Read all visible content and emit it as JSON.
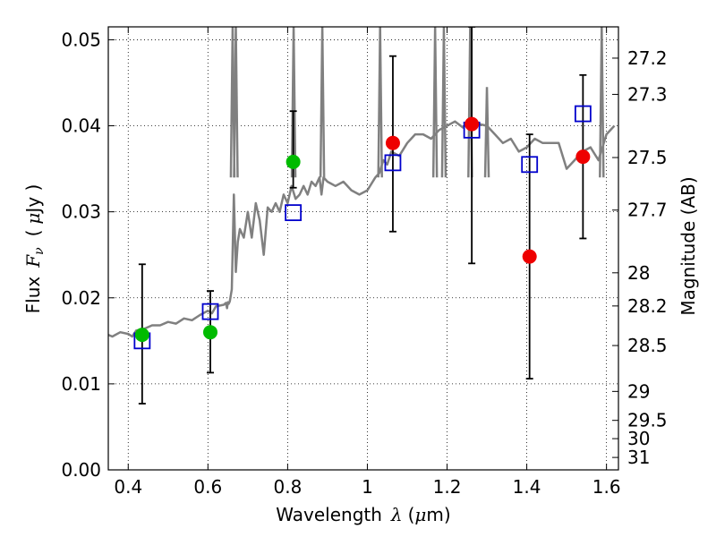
{
  "chart_data": {
    "type": "scatter",
    "xlabel_prefix": "Wavelength",
    "xlabel_symbol": "λ",
    "xlabel_unit_open": "(",
    "xlabel_unit_mu": "μ",
    "xlabel_unit_rest": "m)",
    "ylabel_prefix": "Flux",
    "ylabel_symbol": "F",
    "ylabel_subscript": "ν",
    "ylabel_unit_open": "(",
    "ylabel_unit_mu": "μ",
    "ylabel_unit_rest": "Jy )",
    "y2label": "Magnitude (AB)",
    "xlim": [
      0.35,
      1.63
    ],
    "ylim": [
      0.0,
      0.0515
    ],
    "grid": true,
    "x_ticks": [
      {
        "v": 0.4,
        "t": "0.4"
      },
      {
        "v": 0.6,
        "t": "0.6"
      },
      {
        "v": 0.8,
        "t": "0.8"
      },
      {
        "v": 1.0,
        "t": "1"
      },
      {
        "v": 1.2,
        "t": "1.2"
      },
      {
        "v": 1.4,
        "t": "1.4"
      },
      {
        "v": 1.6,
        "t": "1.6"
      }
    ],
    "y_ticks": [
      {
        "v": 0.0,
        "t": "0.00"
      },
      {
        "v": 0.01,
        "t": "0.01"
      },
      {
        "v": 0.02,
        "t": "0.02"
      },
      {
        "v": 0.03,
        "t": "0.03"
      },
      {
        "v": 0.04,
        "t": "0.04"
      },
      {
        "v": 0.05,
        "t": "0.05"
      }
    ],
    "y2_ticks": [
      {
        "mag": 27.2,
        "t": "27.2"
      },
      {
        "mag": 27.3,
        "t": "27.3"
      },
      {
        "mag": 27.5,
        "t": "27.5"
      },
      {
        "mag": 27.7,
        "t": "27.7"
      },
      {
        "mag": 28,
        "t": "28"
      },
      {
        "mag": 28.2,
        "t": "28.2"
      },
      {
        "mag": 28.5,
        "t": "28.5"
      },
      {
        "mag": 29,
        "t": "29"
      },
      {
        "mag": 29.5,
        "t": "29.5"
      },
      {
        "mag": 30,
        "t": "30"
      },
      {
        "mag": 31,
        "t": "31"
      }
    ],
    "series": [
      {
        "name": "model_spectrum",
        "kind": "line",
        "color": "#808080",
        "x": [
          0.35,
          0.36,
          0.38,
          0.4,
          0.41,
          0.42,
          0.44,
          0.46,
          0.48,
          0.5,
          0.52,
          0.54,
          0.56,
          0.58,
          0.6,
          0.61,
          0.62,
          0.63,
          0.64,
          0.645,
          0.648,
          0.65,
          0.652,
          0.655,
          0.66,
          0.665,
          0.67,
          0.675,
          0.68,
          0.69,
          0.7,
          0.71,
          0.72,
          0.73,
          0.74,
          0.75,
          0.76,
          0.77,
          0.78,
          0.79,
          0.8,
          0.81,
          0.82,
          0.83,
          0.84,
          0.85,
          0.86,
          0.87,
          0.88,
          0.885,
          0.89,
          0.9,
          0.92,
          0.94,
          0.96,
          0.98,
          1.0,
          1.02,
          1.03,
          1.04,
          1.05,
          1.06,
          1.08,
          1.1,
          1.12,
          1.14,
          1.16,
          1.18,
          1.2,
          1.22,
          1.24,
          1.26,
          1.28,
          1.3,
          1.32,
          1.34,
          1.36,
          1.38,
          1.4,
          1.42,
          1.44,
          1.46,
          1.48,
          1.5,
          1.52,
          1.54,
          1.56,
          1.58,
          1.6,
          1.62
        ],
        "y": [
          0.0157,
          0.0155,
          0.016,
          0.0158,
          0.0155,
          0.0162,
          0.0164,
          0.0168,
          0.0168,
          0.0172,
          0.017,
          0.0176,
          0.0174,
          0.018,
          0.0185,
          0.0182,
          0.019,
          0.0191,
          0.0192,
          0.0194,
          0.0188,
          0.0195,
          0.0193,
          0.0196,
          0.021,
          0.032,
          0.023,
          0.0265,
          0.028,
          0.027,
          0.03,
          0.027,
          0.031,
          0.029,
          0.025,
          0.0305,
          0.03,
          0.031,
          0.03,
          0.032,
          0.031,
          0.033,
          0.0315,
          0.032,
          0.033,
          0.032,
          0.0335,
          0.033,
          0.034,
          0.032,
          0.034,
          0.0335,
          0.033,
          0.0335,
          0.0325,
          0.032,
          0.0325,
          0.034,
          0.0345,
          0.036,
          0.0355,
          0.037,
          0.0365,
          0.038,
          0.039,
          0.039,
          0.0385,
          0.0395,
          0.04,
          0.0405,
          0.0398,
          0.041,
          0.0402,
          0.04,
          0.039,
          0.038,
          0.0385,
          0.037,
          0.0375,
          0.0385,
          0.038,
          0.038,
          0.038,
          0.035,
          0.036,
          0.037,
          0.0375,
          0.036,
          0.039,
          0.04
        ]
      },
      {
        "name": "model_spectrum_spikes",
        "kind": "line",
        "color": "#808080",
        "spikes": [
          {
            "x": 0.662,
            "ypeak": 0.0515
          },
          {
            "x": 0.67,
            "ypeak": 0.0515
          },
          {
            "x": 0.815,
            "ypeak": 0.0515
          },
          {
            "x": 0.887,
            "ypeak": 0.0515
          },
          {
            "x": 1.032,
            "ypeak": 0.0515
          },
          {
            "x": 1.17,
            "ypeak": 0.0515
          },
          {
            "x": 1.192,
            "ypeak": 0.0515
          },
          {
            "x": 1.258,
            "ypeak": 0.0515
          },
          {
            "x": 1.3,
            "ypeak": 0.0445
          },
          {
            "x": 1.588,
            "ypeak": 0.0515
          }
        ]
      },
      {
        "name": "photometry_observed",
        "kind": "errorbar",
        "color": "#000000",
        "points": [
          {
            "x": 0.435,
            "lo": 0.0077,
            "hi": 0.0239
          },
          {
            "x": 0.606,
            "lo": 0.0113,
            "hi": 0.0208
          },
          {
            "x": 0.814,
            "lo": 0.0328,
            "hi": 0.0417
          },
          {
            "x": 1.064,
            "lo": 0.0277,
            "hi": 0.0481
          },
          {
            "x": 1.262,
            "lo": 0.024,
            "hi": 0.0515
          },
          {
            "x": 1.407,
            "lo": 0.0106,
            "hi": 0.039
          },
          {
            "x": 1.541,
            "lo": 0.0269,
            "hi": 0.0459
          }
        ]
      },
      {
        "name": "model_photometry",
        "kind": "open-square",
        "color": "#0000cc",
        "x": [
          0.435,
          0.606,
          0.814,
          1.064,
          1.262,
          1.407,
          1.541
        ],
        "y": [
          0.015,
          0.0184,
          0.0299,
          0.0357,
          0.0395,
          0.0355,
          0.0414
        ]
      },
      {
        "name": "detections_optical",
        "kind": "filled-circle",
        "color": "#00bb00",
        "x": [
          0.435,
          0.606,
          0.814
        ],
        "y": [
          0.0157,
          0.016,
          0.0358
        ]
      },
      {
        "name": "detections_nir",
        "kind": "filled-circle",
        "color": "#ee0000",
        "x": [
          1.064,
          1.262,
          1.407,
          1.541
        ],
        "y": [
          0.038,
          0.0402,
          0.0248,
          0.0364
        ]
      }
    ]
  }
}
